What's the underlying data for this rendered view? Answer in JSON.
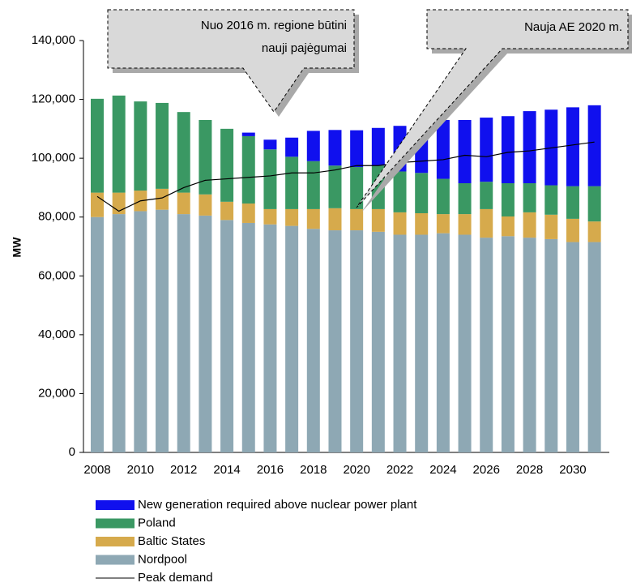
{
  "chart_data": {
    "type": "bar",
    "stacked": true,
    "y_label": "MW",
    "categories": [
      "2008",
      null,
      "2010",
      null,
      "2012",
      null,
      "2014",
      null,
      "2016",
      null,
      "2018",
      null,
      "2020",
      null,
      "2022",
      null,
      "2024",
      null,
      "2026",
      null,
      "2028",
      null,
      "2030",
      null
    ],
    "series": [
      {
        "name": "New generation required above nuclear power plant",
        "color": "#1010ee",
        "values": [
          null,
          null,
          null,
          null,
          null,
          null,
          null,
          1200,
          3300,
          6500,
          10300,
          12100,
          12500,
          12800,
          15500,
          17000,
          20000,
          21500,
          21800,
          22800,
          24500,
          25700,
          26800,
          27500
        ]
      },
      {
        "name": "Poland",
        "color": "#3a9863",
        "values": [
          31900,
          33000,
          30300,
          29200,
          27400,
          25300,
          24800,
          22900,
          20300,
          17800,
          16300,
          14500,
          14300,
          14800,
          13900,
          13700,
          12000,
          10500,
          9300,
          11300,
          9900,
          10000,
          11100,
          12000
        ]
      },
      {
        "name": "Baltic States",
        "color": "#d6aa4c",
        "values": [
          8300,
          7300,
          7000,
          7100,
          7300,
          7200,
          6200,
          6600,
          5200,
          5700,
          6700,
          7500,
          7200,
          7700,
          7600,
          7300,
          6500,
          7000,
          9700,
          6700,
          8600,
          8300,
          7900,
          7000
        ]
      },
      {
        "name": "Nordpool",
        "color": "#8ea8b4",
        "values": [
          80000,
          81000,
          82000,
          82500,
          81000,
          80500,
          79000,
          78000,
          77500,
          77000,
          76000,
          75500,
          75500,
          75000,
          74000,
          74000,
          74500,
          74000,
          73000,
          73500,
          73000,
          72500,
          71500,
          71500
        ]
      }
    ],
    "line_series": {
      "name": "Peak demand",
      "color": "#000000",
      "values": [
        87000,
        82000,
        85500,
        86500,
        90000,
        92500,
        93000,
        93500,
        94000,
        95000,
        95000,
        96000,
        97500,
        97500,
        98500,
        99000,
        99500,
        101000,
        100500,
        102000,
        102500,
        103500,
        104500,
        105500
      ]
    },
    "ylim": [
      0,
      140000
    ],
    "yticks": [
      0,
      {
        "value": 20000,
        "label": "20,000"
      },
      {
        "value": 40000,
        "label": "40,000"
      },
      {
        "value": 60000,
        "label": "60,000"
      },
      {
        "value": 80000,
        "label": "80,000"
      },
      {
        "value": 100000,
        "label": "100,000"
      },
      {
        "value": 120000,
        "label": "120,000"
      },
      {
        "value": 140000,
        "label": "140,000"
      }
    ],
    "grid": false,
    "annotations": [
      {
        "lines": [
          "Nuo  2016 m. regione būtini",
          "nauji pajėgumai"
        ]
      },
      {
        "lines": [
          "Nauja AE  2020 m."
        ]
      }
    ]
  }
}
